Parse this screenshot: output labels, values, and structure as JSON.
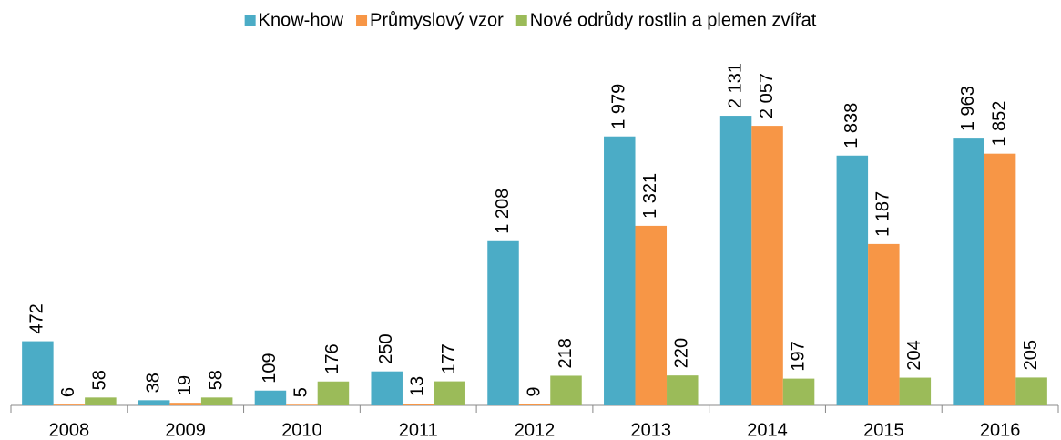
{
  "chart_data": {
    "type": "bar",
    "categories": [
      "2008",
      "2009",
      "2010",
      "2011",
      "2012",
      "2013",
      "2014",
      "2015",
      "2016"
    ],
    "series": [
      {
        "name": "Know-how",
        "color": "#4bacc6",
        "values": [
          472,
          38,
          109,
          250,
          1208,
          1979,
          2131,
          1838,
          1963
        ],
        "value_labels": [
          "472",
          "38",
          "109",
          "250",
          "1 208",
          "1 979",
          "2 131",
          "1 838",
          "1 963"
        ]
      },
      {
        "name": "Průmyslový vzor",
        "color": "#f79646",
        "values": [
          6,
          19,
          5,
          13,
          9,
          1321,
          2057,
          1187,
          1852
        ],
        "value_labels": [
          "6",
          "19",
          "5",
          "13",
          "9",
          "1 321",
          "2 057",
          "1 187",
          "1 852"
        ]
      },
      {
        "name": "Nové odrůdy rostlin a plemen zvířat",
        "color": "#9bbb59",
        "values": [
          58,
          58,
          176,
          177,
          218,
          220,
          197,
          204,
          205
        ],
        "value_labels": [
          "58",
          "58",
          "176",
          "177",
          "218",
          "220",
          "197",
          "204",
          "205"
        ]
      }
    ],
    "ylim": [
      0,
      2500
    ],
    "legend": "top"
  }
}
